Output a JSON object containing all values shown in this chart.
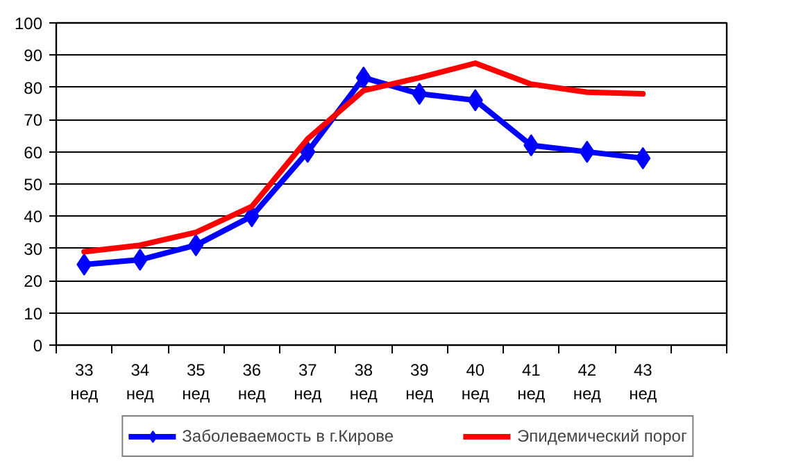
{
  "chart_data": {
    "type": "line",
    "categories": [
      "33\nнед",
      "34\nнед",
      "35\nнед",
      "36\nнед",
      "37\nнед",
      "38\nнед",
      "39\nнед",
      "40\nнед",
      "41\nнед",
      "42\nнед",
      "43\nнед",
      null
    ],
    "series": [
      {
        "name": "Заболеваемость в г.Кирове",
        "color": "#0000ff",
        "marker": "diamond",
        "values": [
          25,
          26.5,
          31,
          40,
          60,
          83,
          78,
          76,
          62,
          60,
          58,
          null
        ]
      },
      {
        "name": "Эпидемический порог",
        "color": "#ff0000",
        "marker": "none",
        "values": [
          29,
          31,
          35,
          43,
          64,
          79,
          83,
          87.5,
          81,
          78.5,
          78,
          null
        ]
      }
    ],
    "ylim": [
      0,
      100
    ],
    "yticks": [
      0,
      10,
      20,
      30,
      40,
      50,
      60,
      70,
      80,
      90,
      100
    ],
    "grid": "y",
    "legend": "bottom",
    "line_style": "solid"
  }
}
